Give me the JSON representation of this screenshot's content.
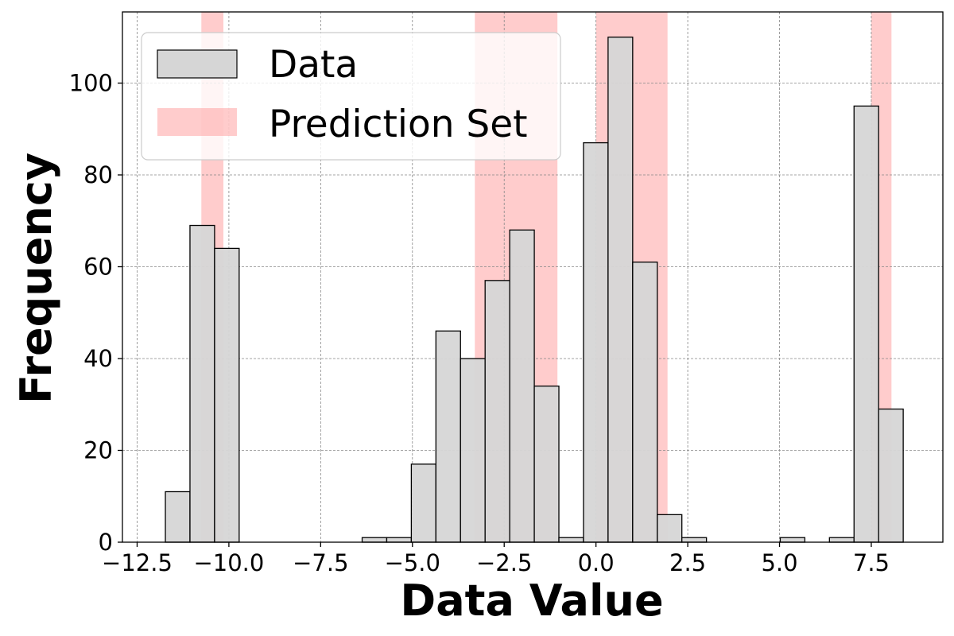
{
  "chart_data": {
    "type": "bar",
    "title": "",
    "xlabel": "Data Value",
    "ylabel": "Frequency",
    "xlim": [
      -12.9,
      9.45
    ],
    "ylim": [
      0,
      115.5
    ],
    "xticks": [
      -12.5,
      -10.0,
      -7.5,
      -5.0,
      -2.5,
      0.0,
      2.5,
      5.0,
      7.5
    ],
    "xtick_labels": [
      "−12.5",
      "−10.0",
      "−7.5",
      "−5.0",
      "−2.5",
      "0.0",
      "2.5",
      "5.0",
      "7.5"
    ],
    "yticks": [
      0,
      20,
      40,
      60,
      80,
      100
    ],
    "ytick_labels": [
      "0",
      "20",
      "40",
      "60",
      "80",
      "100"
    ],
    "grid": true,
    "legend_position": "top-left",
    "bin_edges": [
      -11.73,
      -11.06,
      -10.39,
      -9.72,
      -9.05,
      -8.38,
      -7.71,
      -7.04,
      -6.37,
      -5.7,
      -5.03,
      -4.36,
      -3.69,
      -3.02,
      -2.35,
      -1.68,
      -1.01,
      -0.34,
      0.33,
      1.0,
      1.67,
      2.34,
      3.01,
      3.68,
      4.35,
      5.02,
      5.69,
      6.36,
      7.03,
      7.7,
      8.37
    ],
    "series": [
      {
        "name": "Data",
        "color": "#d6d6d6",
        "edgecolor": "#000000",
        "values": [
          11,
          69,
          64,
          0,
          0,
          0,
          0,
          0,
          1,
          1,
          17,
          46,
          40,
          57,
          68,
          34,
          1,
          87,
          110,
          61,
          6,
          1,
          0,
          0,
          0,
          1,
          0,
          1,
          95,
          29
        ]
      },
      {
        "name": "Prediction Set",
        "color": "#ff9999",
        "intervals": [
          [
            -10.75,
            -10.15
          ],
          [
            -3.3,
            -1.05
          ],
          [
            0.0,
            1.95
          ],
          [
            7.5,
            8.05
          ]
        ]
      }
    ]
  },
  "legend": {
    "data_label": "Data",
    "prediction_label": "Prediction Set"
  }
}
